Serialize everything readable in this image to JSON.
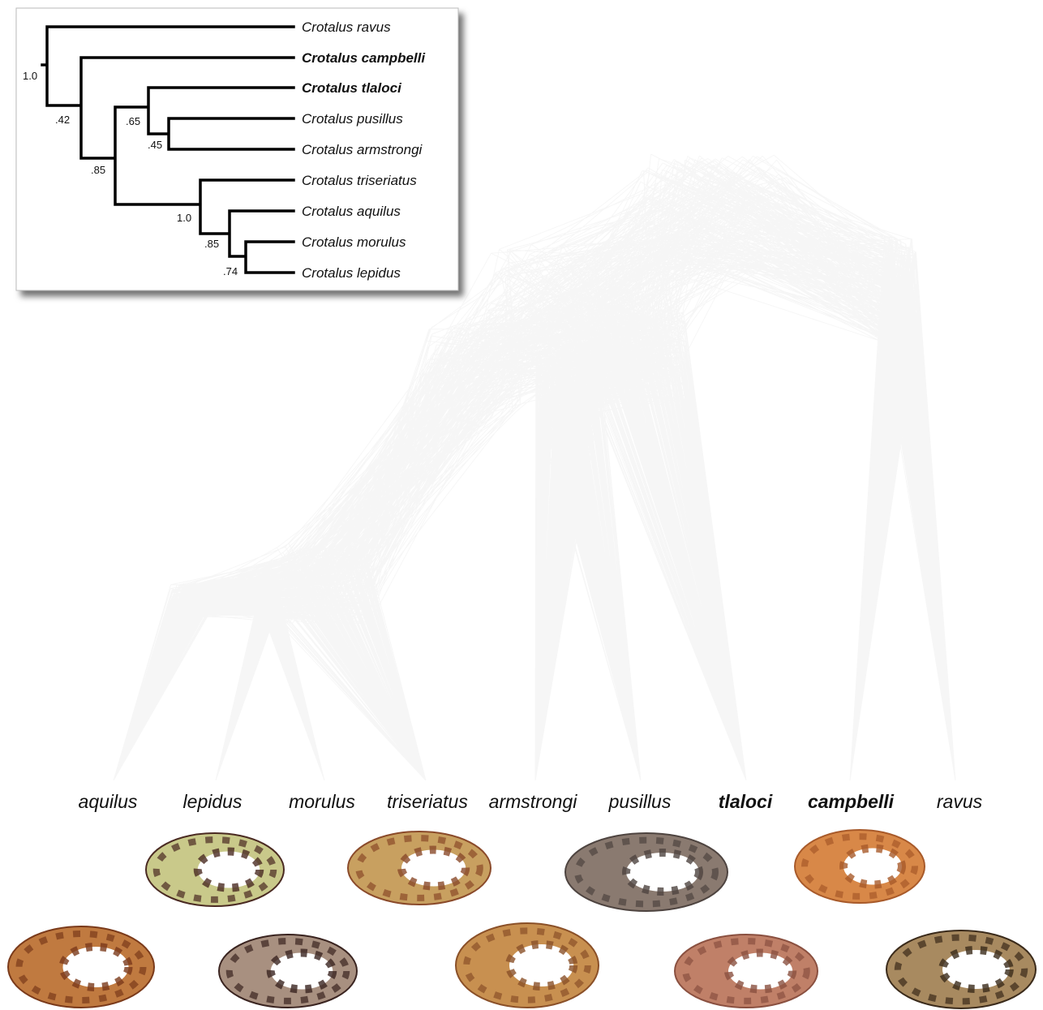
{
  "inset_tree": {
    "tips": [
      "Crotalus ravus",
      "Crotalus campbelli",
      "Crotalus tlaloci",
      "Crotalus pusillus",
      "Crotalus armstrongi",
      "Crotalus triseriatus",
      "Crotalus aquilus",
      "Crotalus morulus",
      "Crotalus lepidus"
    ],
    "support": [
      "1.0",
      ".42",
      ".85",
      ".65",
      ".45",
      "1.0",
      ".85",
      ".74"
    ]
  },
  "taxa": [
    "aquilus",
    "lepidus",
    "morulus",
    "triseriatus",
    "armstrongi",
    "pusillus",
    "tlaloci",
    "campbelli",
    "ravus"
  ]
}
